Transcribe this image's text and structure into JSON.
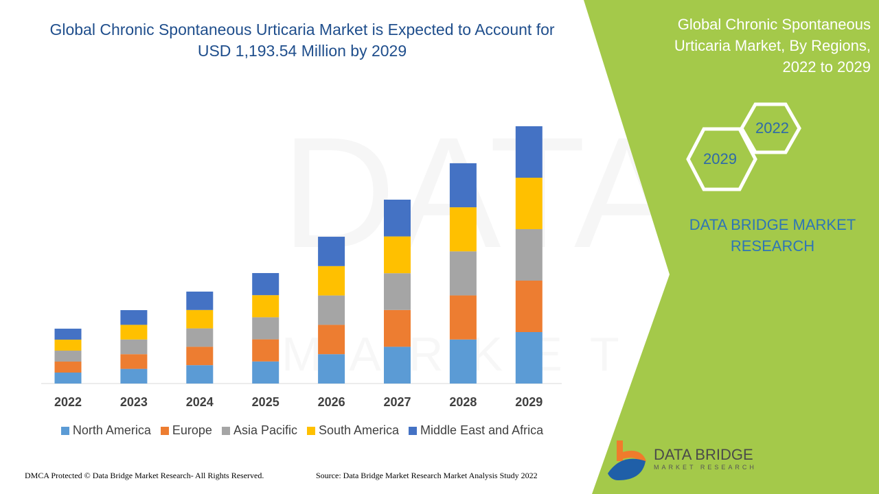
{
  "header": {
    "title": "Global Chronic Spontaneous Urticaria Market is Expected to Account for USD 1,193.54 Million by 2029"
  },
  "side_panel": {
    "title": "Global Chronic Spontaneous Urticaria Market, By Regions, 2022 to 2029",
    "hex_start": "2022",
    "hex_end": "2029",
    "brand": "DATA BRIDGE MARKET RESEARCH",
    "color": "#a4c94a"
  },
  "logo": {
    "name": "DATA BRIDGE",
    "sub": "MARKET RESEARCH"
  },
  "watermark": {
    "text": "DATA BRIDGE",
    "sub": "MARKET RESEARCH"
  },
  "footer": {
    "left": "DMCA Protected © Data Bridge Market Research- All Rights Reserved.",
    "right": "Source: Data Bridge Market Research Market Analysis Study 2022"
  },
  "chart_data": {
    "type": "bar",
    "stacked": true,
    "title": "Global Chronic Spontaneous Urticaria Market is Expected to Account for USD 1,193.54 Million by 2029",
    "xlabel": "",
    "ylabel": "",
    "unit": "USD Million",
    "y_axis_visible": false,
    "grid": false,
    "legend_position": "bottom",
    "ylim": [
      0,
      1193.54
    ],
    "categories": [
      "2022",
      "2023",
      "2024",
      "2025",
      "2026",
      "2027",
      "2028",
      "2029"
    ],
    "series": [
      {
        "name": "North America",
        "color": "#5b9bd5",
        "values": [
          50.9,
          68.1,
          85.3,
          102.5,
          136.2,
          170.6,
          204.4,
          238.7
        ]
      },
      {
        "name": "Europe",
        "color": "#ed7d31",
        "values": [
          50.9,
          68.1,
          85.3,
          102.5,
          136.2,
          170.6,
          204.4,
          238.7
        ]
      },
      {
        "name": "Asia Pacific",
        "color": "#a5a5a5",
        "values": [
          50.9,
          68.1,
          85.3,
          102.5,
          136.2,
          170.6,
          204.4,
          238.7
        ]
      },
      {
        "name": "South America",
        "color": "#ffc000",
        "values": [
          50.9,
          68.1,
          85.3,
          102.5,
          136.2,
          170.6,
          204.4,
          238.7
        ]
      },
      {
        "name": "Middle East and Africa",
        "color": "#4472c4",
        "values": [
          50.9,
          68.1,
          85.3,
          102.5,
          136.2,
          170.6,
          204.4,
          238.7
        ]
      }
    ]
  }
}
